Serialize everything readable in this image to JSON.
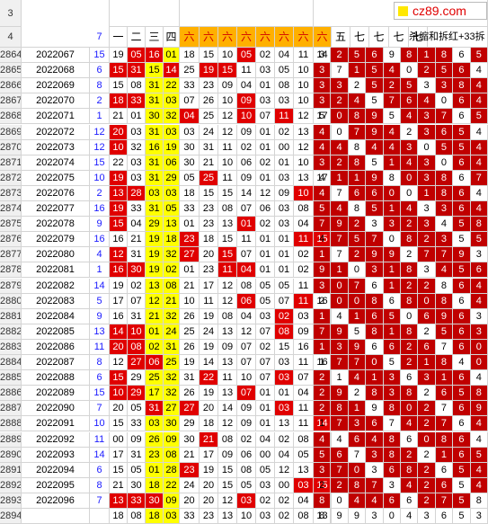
{
  "logo_text": "cz89.com",
  "header_row3_label": "3",
  "header_row4_label": "4",
  "header_col_c": "7",
  "group1_headers": [
    "一",
    "二",
    "三",
    "四"
  ],
  "group2_headers": [
    "六",
    "六",
    "六",
    "六",
    "六",
    "六",
    "六",
    "六"
  ],
  "group3_headers": [
    "五",
    "七",
    "七",
    "七",
    "七"
  ],
  "group3_tail": "杀缩和拆红+33拆",
  "rows": [
    {
      "r": "2864",
      "id": "2022067",
      "c": "15",
      "a": [
        "19",
        "05",
        "16",
        "01"
      ],
      "b": [
        "18",
        "15",
        "10",
        "05",
        "02",
        "04",
        "11",
        "14"
      ],
      "d": [
        "3",
        "2",
        "5",
        "6",
        "9",
        "8",
        "1",
        "8",
        "6",
        "5"
      ]
    },
    {
      "r": "2865",
      "id": "2022068",
      "c": "6",
      "a": [
        "15",
        "31",
        "15",
        "14"
      ],
      "b": [
        "25",
        "19",
        "15",
        "11",
        "03",
        "05",
        "10",
        "13"
      ],
      "d": [
        "3",
        "7",
        "1",
        "5",
        "4",
        "0",
        "2",
        "5",
        "6",
        "4"
      ]
    },
    {
      "r": "2866",
      "id": "2022069",
      "c": "8",
      "a": [
        "15",
        "08",
        "31",
        "22"
      ],
      "b": [
        "33",
        "23",
        "09",
        "04",
        "01",
        "08",
        "10",
        "13"
      ],
      "d": [
        "3",
        "3",
        "2",
        "5",
        "2",
        "5",
        "3",
        "3",
        "8",
        "4"
      ]
    },
    {
      "r": "2867",
      "id": "2022070",
      "c": "2",
      "a": [
        "18",
        "33",
        "31",
        "03"
      ],
      "b": [
        "07",
        "26",
        "10",
        "09",
        "03",
        "03",
        "10",
        "13"
      ],
      "d": [
        "3",
        "2",
        "4",
        "5",
        "7",
        "6",
        "4",
        "0",
        "6",
        "4"
      ]
    },
    {
      "r": "2868",
      "id": "2022071",
      "c": "1",
      "a": [
        "21",
        "01",
        "30",
        "32"
      ],
      "b": [
        "04",
        "25",
        "12",
        "10",
        "07",
        "11",
        "12",
        "17"
      ],
      "d": [
        "5",
        "0",
        "8",
        "9",
        "5",
        "4",
        "3",
        "7",
        "6",
        "5"
      ]
    },
    {
      "r": "2869",
      "id": "2022072",
      "c": "12",
      "a": [
        "20",
        "03",
        "31",
        "03"
      ],
      "b": [
        "03",
        "24",
        "12",
        "09",
        "01",
        "02",
        "13",
        "17"
      ],
      "d": [
        "4",
        "0",
        "7",
        "9",
        "4",
        "2",
        "3",
        "6",
        "5",
        "4"
      ]
    },
    {
      "r": "2870",
      "id": "2022073",
      "c": "12",
      "a": [
        "10",
        "32",
        "16",
        "19"
      ],
      "b": [
        "30",
        "31",
        "11",
        "02",
        "01",
        "00",
        "12",
        "16"
      ],
      "d": [
        "4",
        "4",
        "8",
        "4",
        "4",
        "3",
        "0",
        "5",
        "5",
        "4"
      ]
    },
    {
      "r": "2871",
      "id": "2022074",
      "c": "15",
      "a": [
        "22",
        "03",
        "31",
        "06"
      ],
      "b": [
        "30",
        "21",
        "10",
        "06",
        "02",
        "01",
        "10",
        "13"
      ],
      "d": [
        "3",
        "2",
        "8",
        "5",
        "1",
        "4",
        "3",
        "0",
        "6",
        "4"
      ]
    },
    {
      "r": "2872",
      "id": "2022075",
      "c": "10",
      "a": [
        "19",
        "03",
        "31",
        "29"
      ],
      "b": [
        "05",
        "25",
        "11",
        "09",
        "01",
        "03",
        "13",
        "17"
      ],
      "d": [
        "4",
        "1",
        "1",
        "9",
        "8",
        "0",
        "3",
        "8",
        "6",
        "7"
      ]
    },
    {
      "r": "2873",
      "id": "2022076",
      "c": "2",
      "a": [
        "13",
        "28",
        "03",
        "03"
      ],
      "b": [
        "18",
        "15",
        "15",
        "14",
        "12",
        "09",
        "10",
        "14"
      ],
      "d": [
        "4",
        "7",
        "6",
        "6",
        "0",
        "0",
        "1",
        "8",
        "6",
        "4"
      ]
    },
    {
      "r": "2874",
      "id": "2022077",
      "c": "16",
      "a": [
        "19",
        "33",
        "31",
        "05"
      ],
      "b": [
        "33",
        "23",
        "08",
        "07",
        "06",
        "03",
        "08",
        "13"
      ],
      "d": [
        "5",
        "4",
        "8",
        "5",
        "1",
        "4",
        "3",
        "3",
        "6",
        "4"
      ]
    },
    {
      "r": "2875",
      "id": "2022078",
      "c": "9",
      "a": [
        "15",
        "04",
        "29",
        "13"
      ],
      "b": [
        "01",
        "23",
        "13",
        "01",
        "02",
        "03",
        "04",
        "11"
      ],
      "d": [
        "7",
        "9",
        "2",
        "3",
        "3",
        "2",
        "3",
        "4",
        "5",
        "8"
      ]
    },
    {
      "r": "2876",
      "id": "2022079",
      "c": "16",
      "a": [
        "16",
        "21",
        "19",
        "18"
      ],
      "b": [
        "23",
        "18",
        "15",
        "11",
        "01",
        "01",
        "11",
        "15"
      ],
      "d": [
        "4",
        "7",
        "5",
        "7",
        "0",
        "8",
        "2",
        "3",
        "5",
        "5"
      ]
    },
    {
      "r": "2877",
      "id": "2022080",
      "c": "4",
      "a": [
        "12",
        "31",
        "19",
        "32"
      ],
      "b": [
        "27",
        "20",
        "15",
        "07",
        "01",
        "01",
        "02",
        "15"
      ],
      "d": [
        "1",
        "7",
        "2",
        "9",
        "9",
        "2",
        "7",
        "7",
        "9",
        "3"
      ]
    },
    {
      "r": "2878",
      "id": "2022081",
      "c": "1",
      "a": [
        "16",
        "30",
        "19",
        "02"
      ],
      "b": [
        "01",
        "23",
        "11",
        "04",
        "01",
        "01",
        "02",
        "11"
      ],
      "d": [
        "9",
        "1",
        "0",
        "3",
        "1",
        "8",
        "3",
        "4",
        "5",
        "6"
      ]
    },
    {
      "r": "2879",
      "id": "2022082",
      "c": "14",
      "a": [
        "19",
        "02",
        "13",
        "08"
      ],
      "b": [
        "21",
        "17",
        "12",
        "08",
        "05",
        "05",
        "11",
        "14"
      ],
      "d": [
        "3",
        "0",
        "7",
        "6",
        "1",
        "2",
        "2",
        "8",
        "6",
        "4"
      ]
    },
    {
      "r": "2880",
      "id": "2022083",
      "c": "5",
      "a": [
        "17",
        "07",
        "12",
        "21"
      ],
      "b": [
        "10",
        "11",
        "12",
        "06",
        "05",
        "07",
        "11",
        "16"
      ],
      "d": [
        "2",
        "0",
        "0",
        "8",
        "6",
        "8",
        "0",
        "8",
        "6",
        "4"
      ]
    },
    {
      "r": "2881",
      "id": "2022084",
      "c": "9",
      "a": [
        "16",
        "31",
        "21",
        "32"
      ],
      "b": [
        "26",
        "19",
        "08",
        "04",
        "03",
        "02",
        "03",
        "04"
      ],
      "d": [
        "1",
        "4",
        "1",
        "6",
        "5",
        "0",
        "6",
        "9",
        "6",
        "3"
      ]
    },
    {
      "r": "2882",
      "id": "2022085",
      "c": "13",
      "a": [
        "14",
        "10",
        "01",
        "24"
      ],
      "b": [
        "25",
        "24",
        "13",
        "12",
        "07",
        "08",
        "09",
        "16"
      ],
      "d": [
        "7",
        "9",
        "5",
        "8",
        "1",
        "8",
        "2",
        "5",
        "6",
        "3"
      ]
    },
    {
      "r": "2883",
      "id": "2022086",
      "c": "11",
      "a": [
        "20",
        "08",
        "02",
        "31"
      ],
      "b": [
        "26",
        "19",
        "09",
        "07",
        "02",
        "15",
        "16",
        "17"
      ],
      "d": [
        "1",
        "3",
        "9",
        "6",
        "6",
        "2",
        "6",
        "7",
        "6",
        "0"
      ]
    },
    {
      "r": "2884",
      "id": "2022087",
      "c": "8",
      "a": [
        "12",
        "27",
        "06",
        "25"
      ],
      "b": [
        "19",
        "14",
        "13",
        "07",
        "07",
        "03",
        "11",
        "16"
      ],
      "d": [
        "1",
        "7",
        "7",
        "0",
        "5",
        "2",
        "1",
        "8",
        "4",
        "0"
      ]
    },
    {
      "r": "2885",
      "id": "2022088",
      "c": "6",
      "a": [
        "15",
        "29",
        "25",
        "32"
      ],
      "b": [
        "31",
        "22",
        "11",
        "10",
        "07",
        "03",
        "07",
        "09"
      ],
      "d": [
        "2",
        "1",
        "4",
        "1",
        "3",
        "6",
        "3",
        "1",
        "6",
        "4"
      ]
    },
    {
      "r": "2886",
      "id": "2022089",
      "c": "15",
      "a": [
        "10",
        "29",
        "17",
        "32"
      ],
      "b": [
        "26",
        "19",
        "13",
        "07",
        "01",
        "01",
        "04",
        "06"
      ],
      "d": [
        "2",
        "9",
        "2",
        "8",
        "3",
        "8",
        "2",
        "6",
        "5",
        "8"
      ]
    },
    {
      "r": "2887",
      "id": "2022090",
      "c": "7",
      "a": [
        "20",
        "05",
        "31",
        "27"
      ],
      "b": [
        "27",
        "20",
        "14",
        "09",
        "01",
        "03",
        "11",
        "16"
      ],
      "d": [
        "2",
        "8",
        "1",
        "9",
        "8",
        "0",
        "2",
        "7",
        "6",
        "9"
      ]
    },
    {
      "r": "2888",
      "id": "2022091",
      "c": "10",
      "a": [
        "15",
        "33",
        "03",
        "30"
      ],
      "b": [
        "29",
        "18",
        "12",
        "09",
        "01",
        "13",
        "11",
        "14"
      ],
      "d": [
        "1",
        "7",
        "3",
        "6",
        "7",
        "4",
        "2",
        "7",
        "6",
        "4"
      ]
    },
    {
      "r": "2889",
      "id": "2022092",
      "c": "11",
      "a": [
        "00",
        "09",
        "26",
        "09"
      ],
      "b": [
        "30",
        "21",
        "08",
        "02",
        "04",
        "02",
        "08",
        "12"
      ],
      "d": [
        "4",
        "4",
        "6",
        "4",
        "8",
        "6",
        "0",
        "8",
        "6",
        "4"
      ]
    },
    {
      "r": "2890",
      "id": "2022093",
      "c": "14",
      "a": [
        "17",
        "31",
        "23",
        "08"
      ],
      "b": [
        "21",
        "17",
        "09",
        "06",
        "00",
        "04",
        "05",
        "11"
      ],
      "d": [
        "5",
        "6",
        "7",
        "3",
        "8",
        "2",
        "2",
        "1",
        "6",
        "5"
      ]
    },
    {
      "r": "2891",
      "id": "2022094",
      "c": "6",
      "a": [
        "15",
        "05",
        "01",
        "28"
      ],
      "b": [
        "23",
        "19",
        "15",
        "08",
        "05",
        "12",
        "13",
        "16"
      ],
      "d": [
        "3",
        "7",
        "0",
        "3",
        "6",
        "8",
        "2",
        "6",
        "5",
        "4"
      ]
    },
    {
      "r": "2892",
      "id": "2022095",
      "c": "8",
      "a": [
        "21",
        "30",
        "18",
        "22"
      ],
      "b": [
        "24",
        "20",
        "15",
        "05",
        "03",
        "00",
        "03",
        "15"
      ],
      "d": [
        "2",
        "2",
        "8",
        "7",
        "3",
        "4",
        "2",
        "6",
        "5",
        "4"
      ]
    },
    {
      "r": "2893",
      "id": "2022096",
      "c": "7",
      "a": [
        "13",
        "33",
        "30",
        "09"
      ],
      "b": [
        "20",
        "20",
        "12",
        "03",
        "02",
        "02",
        "04",
        "16"
      ],
      "d": [
        "8",
        "0",
        "4",
        "4",
        "6",
        "6",
        "2",
        "7",
        "5",
        "8"
      ]
    },
    {
      "r": "2894",
      "id": "",
      "c": "",
      "a": [
        "18",
        "08",
        "18",
        "03"
      ],
      "b": [
        "33",
        "23",
        "13",
        "10",
        "03",
        "02",
        "08",
        "13"
      ],
      "d": [
        "8",
        "9",
        "9",
        "3",
        "0",
        "4",
        "3",
        "6",
        "5",
        "3"
      ]
    }
  ]
}
